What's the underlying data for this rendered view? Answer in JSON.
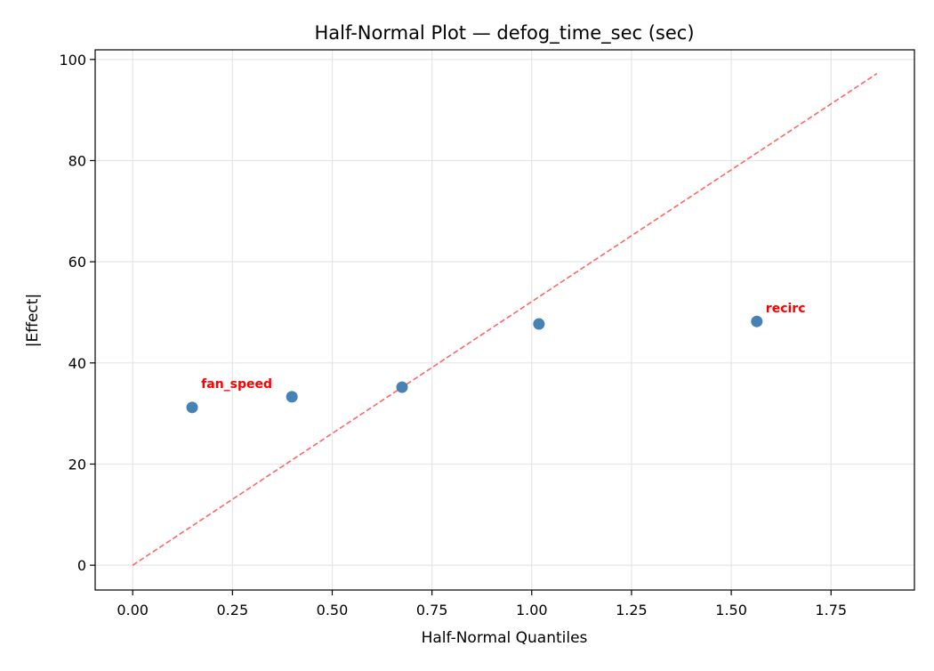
{
  "chart_data": {
    "type": "scatter",
    "title": "Half-Normal Plot — defog_time_sec (sec)",
    "xlabel": "Half-Normal Quantiles",
    "ylabel": "|Effect|",
    "xlim": [
      -0.094,
      1.959
    ],
    "ylim": [
      -4.9,
      101.9
    ],
    "xticks": [
      0.0,
      0.25,
      0.5,
      0.75,
      1.0,
      1.25,
      1.5,
      1.75
    ],
    "xtick_labels": [
      "0.00",
      "0.25",
      "0.50",
      "0.75",
      "1.00",
      "1.25",
      "1.50",
      "1.75"
    ],
    "yticks": [
      0,
      20,
      40,
      60,
      80,
      100
    ],
    "ytick_labels": [
      "0",
      "20",
      "40",
      "60",
      "80",
      "100"
    ],
    "grid": true,
    "points": [
      {
        "x": 0.149,
        "y": 31.2,
        "label": ""
      },
      {
        "x": 0.399,
        "y": 33.3,
        "label": "fan_speed"
      },
      {
        "x": 0.675,
        "y": 35.2,
        "label": ""
      },
      {
        "x": 1.018,
        "y": 47.7,
        "label": ""
      },
      {
        "x": 1.564,
        "y": 48.2,
        "label": "recirc"
      }
    ],
    "reference_line": {
      "x": [
        0,
        1.865
      ],
      "y": [
        0,
        97.2
      ],
      "style": "dashed"
    },
    "colors": {
      "points": "#4682b4",
      "reference_line": "#ff6666",
      "labels": "#ff0000",
      "grid": "#e5e5e5"
    }
  }
}
